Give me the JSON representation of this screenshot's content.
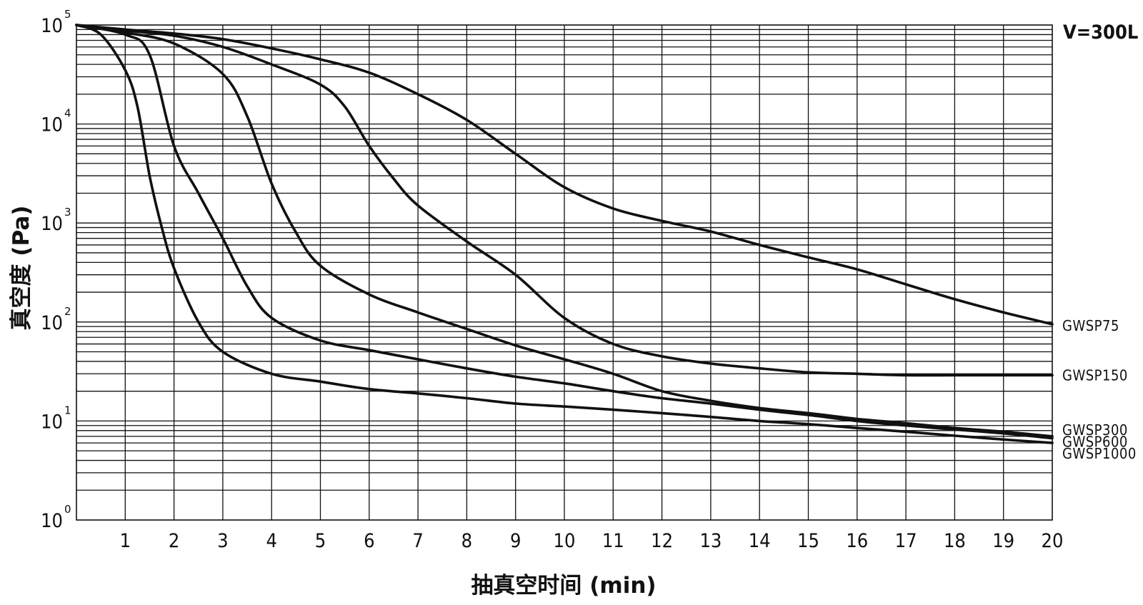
{
  "chart_data": {
    "type": "line",
    "annotation": "V=300L",
    "xlabel": "抽真空时间 (min)",
    "ylabel": "真空度 (Pa)",
    "xlim": [
      0,
      20
    ],
    "ylim": [
      1,
      100000
    ],
    "y_scale": "log",
    "x_ticks": [
      1,
      2,
      3,
      4,
      5,
      6,
      7,
      8,
      9,
      10,
      11,
      12,
      13,
      14,
      15,
      16,
      17,
      18,
      19,
      20
    ],
    "y_ticks": [
      {
        "base": "10",
        "exp": "0",
        "value": 1
      },
      {
        "base": "10",
        "exp": "1",
        "value": 10
      },
      {
        "base": "10",
        "exp": "2",
        "value": 100
      },
      {
        "base": "10",
        "exp": "3",
        "value": 1000
      },
      {
        "base": "10",
        "exp": "4",
        "value": 10000
      },
      {
        "base": "10",
        "exp": "5",
        "value": 100000
      }
    ],
    "grid": true,
    "legend": "inline labels at right end of each curve",
    "series": [
      {
        "name": "GWSP75",
        "points": [
          [
            0,
            100000
          ],
          [
            1,
            90000
          ],
          [
            2,
            82000
          ],
          [
            3,
            72000
          ],
          [
            4,
            58000
          ],
          [
            5,
            45000
          ],
          [
            6,
            33000
          ],
          [
            7,
            20000
          ],
          [
            8,
            11000
          ],
          [
            9,
            5000
          ],
          [
            10,
            2300
          ],
          [
            11,
            1400
          ],
          [
            12,
            1050
          ],
          [
            13,
            820
          ],
          [
            14,
            600
          ],
          [
            15,
            450
          ],
          [
            16,
            340
          ],
          [
            17,
            240
          ],
          [
            18,
            170
          ],
          [
            19,
            125
          ],
          [
            20,
            95
          ]
        ]
      },
      {
        "name": "GWSP150",
        "points": [
          [
            0,
            100000
          ],
          [
            1,
            88000
          ],
          [
            2,
            78000
          ],
          [
            3,
            60000
          ],
          [
            4,
            40000
          ],
          [
            5,
            25000
          ],
          [
            5.5,
            15000
          ],
          [
            6,
            6000
          ],
          [
            6.5,
            2800
          ],
          [
            7,
            1500
          ],
          [
            8,
            650
          ],
          [
            9,
            300
          ],
          [
            10,
            110
          ],
          [
            11,
            60
          ],
          [
            12,
            45
          ],
          [
            13,
            38
          ],
          [
            14,
            34
          ],
          [
            15,
            31
          ],
          [
            16,
            30
          ],
          [
            17,
            29
          ],
          [
            18,
            29
          ],
          [
            19,
            29
          ],
          [
            20,
            29
          ]
        ]
      },
      {
        "name": "GWSP300",
        "points": [
          [
            0,
            100000
          ],
          [
            1,
            84000
          ],
          [
            2,
            65000
          ],
          [
            3,
            32000
          ],
          [
            3.5,
            12000
          ],
          [
            4,
            2500
          ],
          [
            4.5,
            800
          ],
          [
            5,
            370
          ],
          [
            6,
            190
          ],
          [
            7,
            125
          ],
          [
            8,
            85
          ],
          [
            9,
            58
          ],
          [
            10,
            42
          ],
          [
            11,
            30
          ],
          [
            12,
            20
          ],
          [
            13,
            16
          ],
          [
            14,
            13.5
          ],
          [
            15,
            12
          ],
          [
            16,
            10.5
          ],
          [
            17,
            9.5
          ],
          [
            18,
            8.5
          ],
          [
            19,
            7.8
          ],
          [
            20,
            7
          ]
        ]
      },
      {
        "name": "GWSP600",
        "points": [
          [
            0,
            100000
          ],
          [
            1,
            80000
          ],
          [
            1.5,
            50000
          ],
          [
            2,
            6000
          ],
          [
            2.5,
            2000
          ],
          [
            3,
            700
          ],
          [
            3.5,
            230
          ],
          [
            4,
            110
          ],
          [
            5,
            65
          ],
          [
            6,
            52
          ],
          [
            7,
            42
          ],
          [
            8,
            34
          ],
          [
            9,
            28
          ],
          [
            10,
            24
          ],
          [
            11,
            20
          ],
          [
            12,
            17
          ],
          [
            13,
            15
          ],
          [
            14,
            13
          ],
          [
            15,
            11.5
          ],
          [
            16,
            10
          ],
          [
            17,
            9
          ],
          [
            18,
            8.2
          ],
          [
            19,
            7.5
          ],
          [
            20,
            6.7
          ]
        ]
      },
      {
        "name": "GWSP1000",
        "points": [
          [
            0,
            100000
          ],
          [
            0.5,
            80000
          ],
          [
            1,
            35000
          ],
          [
            1.25,
            15000
          ],
          [
            1.5,
            3000
          ],
          [
            1.75,
            900
          ],
          [
            2,
            350
          ],
          [
            2.5,
            100
          ],
          [
            3,
            50
          ],
          [
            4,
            30
          ],
          [
            5,
            25
          ],
          [
            6,
            21
          ],
          [
            7,
            19
          ],
          [
            8,
            17
          ],
          [
            9,
            15
          ],
          [
            10,
            14
          ],
          [
            11,
            13
          ],
          [
            12,
            12
          ],
          [
            13,
            11
          ],
          [
            14,
            10
          ],
          [
            15,
            9.3
          ],
          [
            16,
            8.5
          ],
          [
            17,
            7.8
          ],
          [
            18,
            7.1
          ],
          [
            19,
            6.5
          ],
          [
            20,
            6
          ]
        ]
      }
    ]
  }
}
